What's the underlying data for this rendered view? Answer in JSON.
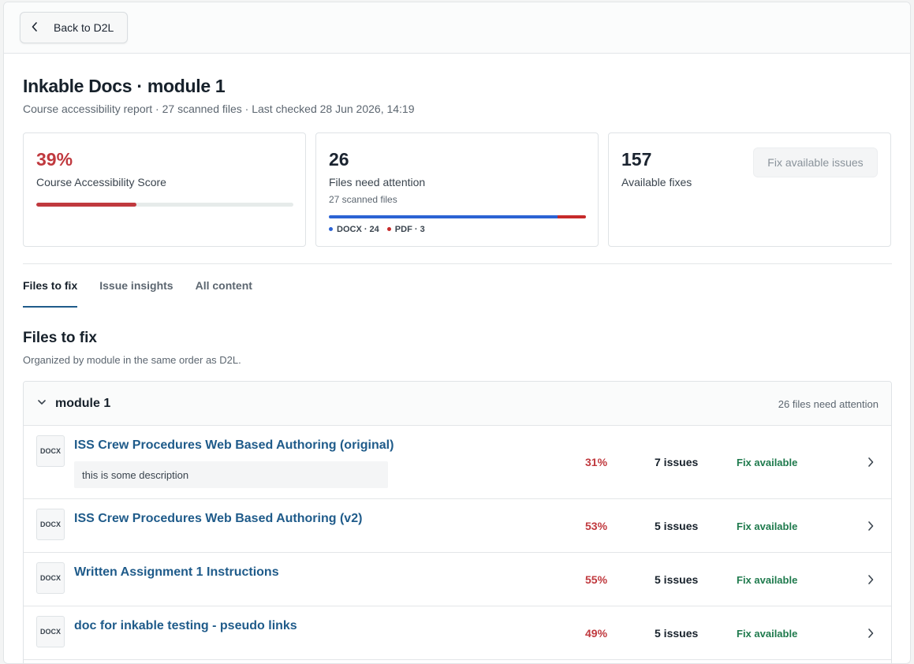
{
  "topbar": {
    "back_label": "Back to D2L"
  },
  "header": {
    "title": "Inkable Docs · module 1",
    "subtitle": "Course accessibility report · 27 scanned files · Last checked 28 Jun 2026, 14:19"
  },
  "cards": {
    "score": {
      "value": "39%",
      "label": "Course Accessibility Score",
      "progress_percent": 39,
      "color": "#c0393e"
    },
    "attention": {
      "value": "26",
      "label": "Files need attention",
      "sub": "27 scanned files",
      "docx_count": 24,
      "pdf_count": 3,
      "legend_docx": "DOCX · 24",
      "legend_pdf": "PDF · 3",
      "docx_color": "#2b63d4",
      "pdf_color": "#c62a2a"
    },
    "fixes": {
      "value": "157",
      "label": "Available fixes",
      "button_label": "Fix available issues"
    }
  },
  "tabs": [
    {
      "label": "Files to fix",
      "active": true
    },
    {
      "label": "Issue insights",
      "active": false
    },
    {
      "label": "All content",
      "active": false
    }
  ],
  "section": {
    "title": "Files to fix",
    "subtitle": "Organized by module in the same order as D2L."
  },
  "module": {
    "name": "module 1",
    "count_label": "26 files need attention",
    "files": [
      {
        "type": "DOCX",
        "title": "ISS Crew Procedures Web Based Authoring (original)",
        "description": "this is some description",
        "score": "31%",
        "issues": "7 issues",
        "status": "Fix available"
      },
      {
        "type": "DOCX",
        "title": "ISS Crew Procedures Web Based Authoring (v2)",
        "score": "53%",
        "issues": "5 issues",
        "status": "Fix available"
      },
      {
        "type": "DOCX",
        "title": "Written Assignment 1 Instructions",
        "score": "55%",
        "issues": "5 issues",
        "status": "Fix available"
      },
      {
        "type": "DOCX",
        "title": "doc for inkable testing - pseudo links",
        "score": "49%",
        "issues": "5 issues",
        "status": "Fix available"
      }
    ]
  },
  "colors": {
    "accent": "#1f5b8a",
    "danger": "#c0393e",
    "success": "#1f7a4d"
  }
}
